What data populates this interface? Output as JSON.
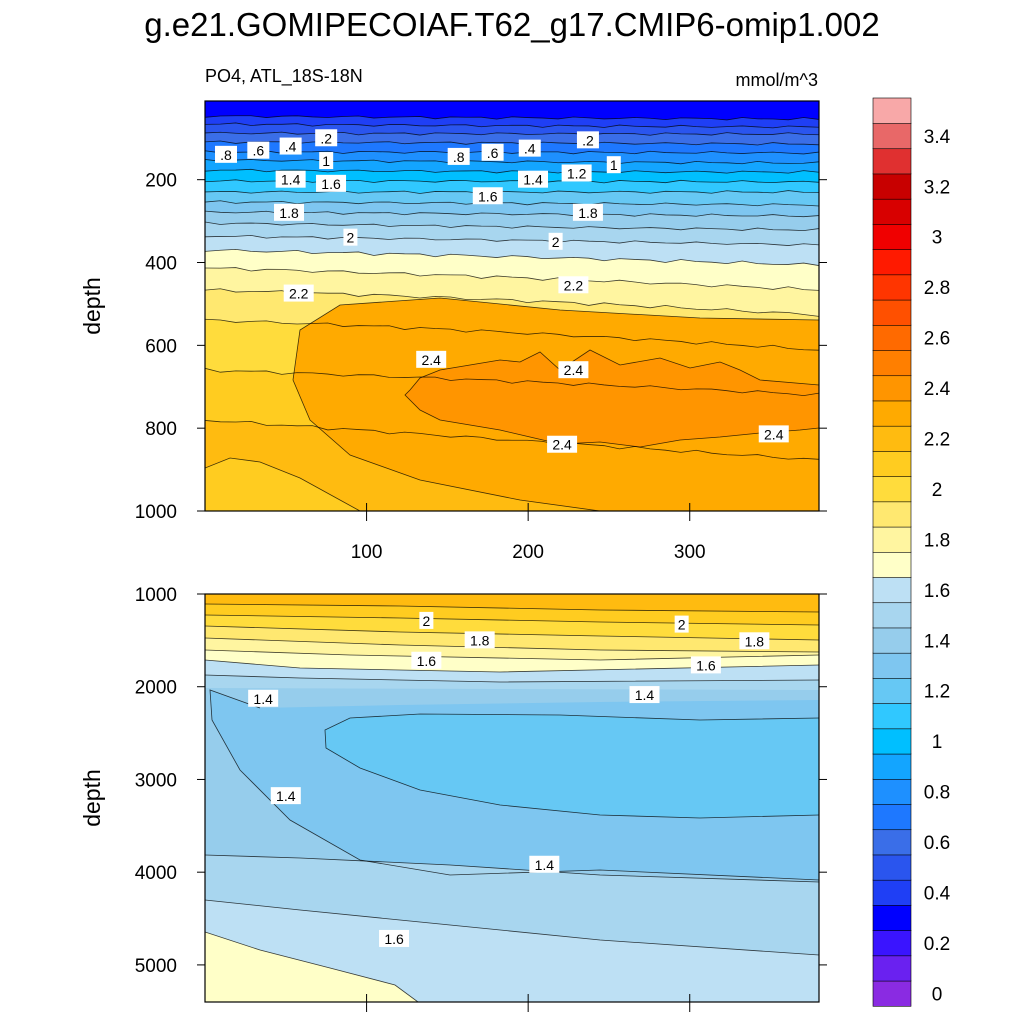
{
  "title": "g.e21.GOMIPECOIAF.T62_g17.CMIP6-omip1.002",
  "chart_data": [
    {
      "type": "contour",
      "panel": "upper",
      "left_title": "PO4, ATL_18S-18N",
      "right_title": "mmol/m^3",
      "ylabel": "depth",
      "xlabel": "",
      "xlim": [
        0,
        380
      ],
      "ylim": [
        1000,
        10
      ],
      "y_inverted": true,
      "x_ticks": [
        100,
        200,
        300
      ],
      "y_ticks": [
        200,
        400,
        600,
        800,
        1000
      ],
      "contour_labels": [
        {
          "text": ".2",
          "x": 75,
          "y": 100
        },
        {
          "text": ".4",
          "x": 53,
          "y": 120
        },
        {
          "text": ".6",
          "x": 33,
          "y": 130
        },
        {
          "text": ".8",
          "x": 13,
          "y": 140
        },
        {
          "text": "1",
          "x": 75,
          "y": 155
        },
        {
          "text": "1.4",
          "x": 53,
          "y": 200
        },
        {
          "text": "1.6",
          "x": 78,
          "y": 210
        },
        {
          "text": "1.8",
          "x": 52,
          "y": 280
        },
        {
          "text": "2",
          "x": 90,
          "y": 340
        },
        {
          "text": "2.2",
          "x": 58,
          "y": 475
        },
        {
          "text": ".2",
          "x": 237,
          "y": 105
        },
        {
          "text": ".4",
          "x": 201,
          "y": 125
        },
        {
          "text": ".6",
          "x": 178,
          "y": 135
        },
        {
          "text": ".8",
          "x": 157,
          "y": 145
        },
        {
          "text": "1.2",
          "x": 230,
          "y": 185
        },
        {
          "text": "1",
          "x": 253,
          "y": 165
        },
        {
          "text": "1.4",
          "x": 203,
          "y": 200
        },
        {
          "text": "1.6",
          "x": 175,
          "y": 240
        },
        {
          "text": "1.8",
          "x": 237,
          "y": 280
        },
        {
          "text": "2",
          "x": 217,
          "y": 350
        },
        {
          "text": "2.2",
          "x": 228,
          "y": 455
        },
        {
          "text": "2.4",
          "x": 140,
          "y": 635
        },
        {
          "text": "2.4",
          "x": 228,
          "y": 660
        },
        {
          "text": "2.4",
          "x": 221,
          "y": 840
        },
        {
          "text": "2.4",
          "x": 352,
          "y": 815
        }
      ]
    },
    {
      "type": "contour",
      "panel": "lower",
      "ylabel": "depth",
      "xlim": [
        0,
        380
      ],
      "ylim": [
        5400,
        1000
      ],
      "y_inverted": true,
      "x_ticks": [
        100,
        200,
        300
      ],
      "y_ticks": [
        1000,
        2000,
        3000,
        4000,
        5000
      ],
      "contour_labels": [
        {
          "text": "2",
          "x": 137,
          "y": 1290
        },
        {
          "text": "1.8",
          "x": 170,
          "y": 1500
        },
        {
          "text": "1.6",
          "x": 137,
          "y": 1720
        },
        {
          "text": "1.4",
          "x": 36,
          "y": 2130
        },
        {
          "text": "2",
          "x": 295,
          "y": 1330
        },
        {
          "text": "1.8",
          "x": 340,
          "y": 1510
        },
        {
          "text": "1.6",
          "x": 310,
          "y": 1770
        },
        {
          "text": "1.4",
          "x": 272,
          "y": 2090
        },
        {
          "text": "1.4",
          "x": 50,
          "y": 3180
        },
        {
          "text": "1.4",
          "x": 210,
          "y": 3920
        },
        {
          "text": "1.6",
          "x": 117,
          "y": 4720
        }
      ]
    }
  ],
  "colorbar": {
    "labels": [
      "0",
      "0.2",
      "0.4",
      "0.6",
      "0.8",
      "1",
      "1.2",
      "1.4",
      "1.6",
      "1.8",
      "2",
      "2.2",
      "2.4",
      "2.6",
      "2.8",
      "3",
      "3.2",
      "3.4"
    ],
    "colors": [
      "#8a2be2",
      "#6a21f0",
      "#3a14ff",
      "#0000ff",
      "#1f3ff5",
      "#2a55ee",
      "#3a6ee8",
      "#1e78ff",
      "#1e90ff",
      "#13a5ff",
      "#00bfff",
      "#30c8ff",
      "#66c8f4",
      "#7ec6f0",
      "#96cdec",
      "#a8d6ef",
      "#bde0f4",
      "#ffffc8",
      "#fff5a0",
      "#ffe870",
      "#ffdc3c",
      "#ffcc20",
      "#ffbb10",
      "#ffaa00",
      "#ff9500",
      "#ff7f00",
      "#ff6a00",
      "#ff5000",
      "#ff3500",
      "#ff1a00",
      "#f00000",
      "#d80000",
      "#c80000",
      "#e03030",
      "#e86868",
      "#f8a8a8"
    ]
  }
}
